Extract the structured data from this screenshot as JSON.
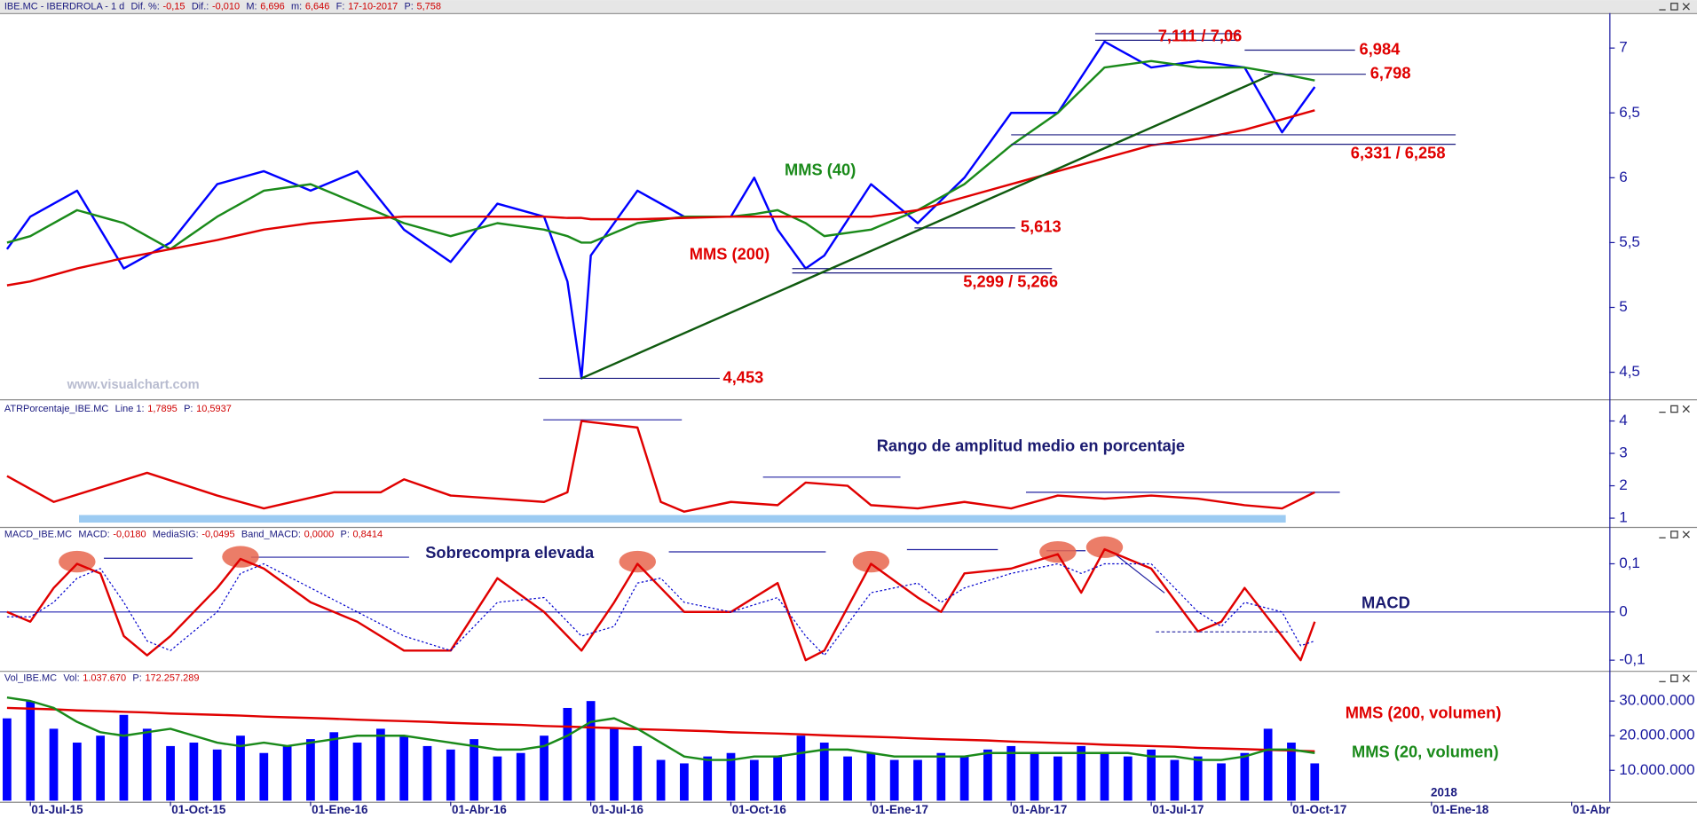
{
  "chart_data": [
    {
      "type": "line",
      "header": {
        "title": "IBE.MC - IBERDROLA -  1 d",
        "stats": [
          {
            "name": "Dif. %:",
            "value": "-0,15"
          },
          {
            "name": "Dif.:",
            "value": "-0,010"
          },
          {
            "name": "M:",
            "value": "6,696"
          },
          {
            "name": "m:",
            "value": "6,646"
          },
          {
            "name": "F:",
            "value": "17-10-2017"
          },
          {
            "name": "P:",
            "value": "5,758"
          }
        ]
      },
      "xlim": [
        -0.65,
        33.6
      ],
      "ylim": [
        4.3,
        7.27
      ],
      "yticks": [
        {
          "value": 4.5,
          "label": "4,5"
        },
        5,
        {
          "value": 5.5,
          "label": "5,5"
        },
        6,
        {
          "value": 6.5,
          "label": "6,5"
        },
        7
      ],
      "x": [
        -0.5,
        0,
        1,
        2,
        3,
        4,
        5,
        6,
        7,
        8,
        9,
        10,
        11,
        11.5,
        11.8,
        12,
        13,
        14,
        15,
        15.5,
        16,
        16.6,
        17,
        18,
        19,
        20,
        21,
        22,
        23,
        24,
        25,
        26,
        26.8,
        27.5
      ],
      "series": [
        {
          "color": "#0000ff",
          "values": [
            5.45,
            5.7,
            5.9,
            5.3,
            5.5,
            5.95,
            6.05,
            5.9,
            6.05,
            5.6,
            5.35,
            5.8,
            5.7,
            5.2,
            4.453,
            5.4,
            5.9,
            5.7,
            5.7,
            6.0,
            5.6,
            5.3,
            5.4,
            5.95,
            5.65,
            6.0,
            6.5,
            6.5,
            7.05,
            6.85,
            6.9,
            6.85,
            6.35,
            6.7
          ]
        },
        {
          "name": "MMS (40)",
          "color": "#1a8a1a",
          "values": [
            5.5,
            5.55,
            5.75,
            5.65,
            5.45,
            5.7,
            5.9,
            5.95,
            5.8,
            5.65,
            5.55,
            5.65,
            5.6,
            5.55,
            5.5,
            5.5,
            5.65,
            5.7,
            5.7,
            5.72,
            5.75,
            5.65,
            5.55,
            5.6,
            5.75,
            5.95,
            6.25,
            6.5,
            6.85,
            6.9,
            6.85,
            6.85,
            6.8,
            6.75
          ]
        },
        {
          "name": "MMS (200)",
          "color": "#e00000",
          "values": [
            5.17,
            5.2,
            5.3,
            5.38,
            5.45,
            5.52,
            5.6,
            5.65,
            5.68,
            5.7,
            5.7,
            5.7,
            5.7,
            5.69,
            5.69,
            5.68,
            5.68,
            5.69,
            5.7,
            5.7,
            5.7,
            5.7,
            5.7,
            5.7,
            5.75,
            5.85,
            5.95,
            6.05,
            6.15,
            6.25,
            6.3,
            6.37,
            6.45,
            6.52
          ]
        }
      ],
      "levels": [
        {
          "text": "4,453",
          "x": 11.8,
          "values": [
            4.453
          ]
        },
        {
          "text": "5,299 / 5,266",
          "x": 16.6,
          "values": [
            5.299,
            5.266
          ]
        },
        {
          "text": "5,613",
          "x": 19,
          "values": [
            5.613
          ]
        },
        {
          "text": "6,331 / 6,258",
          "x": 21,
          "values": [
            6.331,
            6.258
          ]
        },
        {
          "text": "6,798",
          "x": 26.6,
          "values": [
            6.798
          ]
        },
        {
          "text": "6,984",
          "x": 26,
          "values": [
            6.984
          ]
        },
        {
          "text": "7,111 / 7,06",
          "x": 22.8,
          "values": [
            7.111,
            7.06
          ]
        }
      ],
      "annotations": [
        "www.visualchart.com"
      ]
    },
    {
      "type": "line",
      "header": {
        "title": "ATRPorcentaje_IBE.MC",
        "stats": [
          {
            "name": "Line 1:",
            "value": "1,7895"
          },
          {
            "name": "P:",
            "value": "10,5937"
          }
        ]
      },
      "xlim": [
        -0.65,
        33.6
      ],
      "ylim": [
        0.73,
        4.57
      ],
      "yticks": [
        1,
        2,
        3,
        4
      ],
      "x": [
        -0.5,
        0.5,
        2.5,
        4,
        5,
        6.5,
        7.5,
        8,
        9,
        10,
        11,
        11.5,
        11.8,
        13,
        13.5,
        14,
        15,
        16,
        16.6,
        17.5,
        18,
        19,
        20,
        21,
        22,
        23,
        24,
        25,
        26,
        26.8,
        27.5
      ],
      "series": [
        {
          "color": "#e00000",
          "values": [
            2.3,
            1.5,
            2.4,
            1.7,
            1.3,
            1.8,
            1.8,
            2.2,
            1.7,
            1.6,
            1.5,
            1.8,
            4.0,
            3.8,
            1.5,
            1.2,
            1.5,
            1.4,
            2.1,
            2.0,
            1.4,
            1.3,
            1.5,
            1.3,
            1.7,
            1.6,
            1.7,
            1.6,
            1.4,
            1.3,
            1.8
          ]
        }
      ],
      "annotations": [
        "Rango de amplitud medio en porcentaje"
      ]
    },
    {
      "type": "line",
      "header": {
        "title": "MACD_IBE.MC",
        "stats": [
          {
            "name": "MACD:",
            "value": "-0,0180"
          },
          {
            "name": "MediaSIG:",
            "value": "-0,0495"
          },
          {
            "name": "Band_MACD:",
            "value": "0,0000"
          },
          {
            "name": "P:",
            "value": "0,8414"
          }
        ]
      },
      "xlim": [
        -0.65,
        33.6
      ],
      "ylim": [
        -0.122,
        0.172
      ],
      "yticks": [
        {
          "value": 0.1,
          "label": "0,1"
        },
        0,
        {
          "value": -0.1,
          "label": "-0,1"
        }
      ],
      "zero_line": true,
      "x": [
        -0.5,
        0,
        0.5,
        1,
        1.5,
        2,
        2.5,
        3,
        4,
        4.5,
        5,
        6,
        7,
        8,
        9,
        10,
        11,
        11.8,
        12.5,
        13,
        13.5,
        14,
        15,
        16,
        16.6,
        17,
        18,
        19,
        19.5,
        20,
        21,
        22,
        22.5,
        23,
        24,
        25,
        25.5,
        26,
        26.8,
        27.2,
        27.5
      ],
      "series": [
        {
          "name": "MACD",
          "color": "#e00000",
          "values": [
            0,
            -0.02,
            0.05,
            0.1,
            0.08,
            -0.05,
            -0.09,
            -0.05,
            0.05,
            0.11,
            0.09,
            0.02,
            -0.02,
            -0.08,
            -0.08,
            0.07,
            0.0,
            -0.08,
            0.02,
            0.1,
            0.05,
            0.0,
            0.0,
            0.06,
            -0.1,
            -0.08,
            0.1,
            0.03,
            0.0,
            0.08,
            0.09,
            0.12,
            0.04,
            0.13,
            0.09,
            -0.04,
            -0.02,
            0.05,
            -0.05,
            -0.1,
            -0.02
          ]
        },
        {
          "color": "#0000cc",
          "style": "dotted",
          "values": [
            -0.01,
            -0.01,
            0.02,
            0.07,
            0.09,
            0.02,
            -0.06,
            -0.08,
            0.0,
            0.08,
            0.1,
            0.05,
            0.0,
            -0.05,
            -0.08,
            0.02,
            0.03,
            -0.05,
            -0.03,
            0.06,
            0.07,
            0.02,
            0.0,
            0.03,
            -0.05,
            -0.09,
            0.04,
            0.06,
            0.02,
            0.05,
            0.08,
            0.1,
            0.08,
            0.1,
            0.1,
            0.0,
            -0.03,
            0.02,
            0.0,
            -0.07,
            -0.06
          ]
        }
      ],
      "annotations": [
        "Sobrecompra elevada"
      ]
    },
    {
      "type": "bar",
      "header": {
        "title": "Vol_IBE.MC",
        "stats": [
          {
            "name": "Vol:",
            "value": "1.037.670"
          },
          {
            "name": "P:",
            "value": "172.257.289"
          }
        ]
      },
      "xlim": [
        -0.65,
        33.6
      ],
      "ylim": [
        1250000,
        38100000
      ],
      "yticks": [
        {
          "value": 10000000,
          "label": "10.000.000"
        },
        {
          "value": 20000000,
          "label": "20.000.000"
        },
        {
          "value": 30000000,
          "label": "30.000.000"
        }
      ],
      "xticks": [
        {
          "value": 0,
          "label": "01-Jul-15"
        },
        {
          "value": 3,
          "label": "01-Oct-15"
        },
        {
          "value": 6,
          "label": "01-Ene-16"
        },
        {
          "value": 9,
          "label": "01-Abr-16"
        },
        {
          "value": 12,
          "label": "01-Jul-16"
        },
        {
          "value": 15,
          "label": "01-Oct-16"
        },
        {
          "value": 18,
          "label": "01-Ene-17"
        },
        {
          "value": 21,
          "label": "01-Abr-17"
        },
        {
          "value": 24,
          "label": "01-Jul-17"
        },
        {
          "value": 27,
          "label": "01-Oct-17"
        },
        {
          "value": 30,
          "label": "01-Ene-18"
        },
        {
          "value": 33,
          "label": "01-Abr"
        }
      ],
      "x": [
        -0.5,
        0,
        0.5,
        1,
        1.5,
        2,
        2.5,
        3,
        3.5,
        4,
        4.5,
        5,
        5.5,
        6,
        6.5,
        7,
        7.5,
        8,
        8.5,
        9,
        9.5,
        10,
        10.5,
        11,
        11.5,
        12,
        12.5,
        13,
        13.5,
        14,
        14.5,
        15,
        15.5,
        16,
        16.5,
        17,
        17.5,
        18,
        18.5,
        19,
        19.5,
        20,
        20.5,
        21,
        21.5,
        22,
        22.5,
        23,
        23.5,
        24,
        24.5,
        25,
        25.5,
        26,
        26.5,
        27,
        27.5
      ],
      "series": [
        {
          "color": "#0000ff",
          "style": "bar",
          "values": [
            25000000,
            30000000,
            22000000,
            18000000,
            20000000,
            26000000,
            22000000,
            17000000,
            18000000,
            16000000,
            20000000,
            15000000,
            17000000,
            19000000,
            21000000,
            18000000,
            22000000,
            20000000,
            17000000,
            16000000,
            19000000,
            14000000,
            15000000,
            20000000,
            28000000,
            30000000,
            22000000,
            17000000,
            13000000,
            12000000,
            14000000,
            15000000,
            13000000,
            14000000,
            20000000,
            18000000,
            14000000,
            15000000,
            13000000,
            13000000,
            15000000,
            14000000,
            16000000,
            17000000,
            15000000,
            14000000,
            17000000,
            15000000,
            14000000,
            16000000,
            13000000,
            14000000,
            12000000,
            15000000,
            22000000,
            18000000,
            12000000
          ]
        },
        {
          "name": "MMS (200, volumen)",
          "color": "#e00000",
          "style": "line",
          "values": [
            28000000,
            27800000,
            27600000,
            27300000,
            27100000,
            26900000,
            26700000,
            26400000,
            26200000,
            26000000,
            25800000,
            25500000,
            25300000,
            25100000,
            24900000,
            24600000,
            24400000,
            24200000,
            24000000,
            23700000,
            23500000,
            23300000,
            23100000,
            22800000,
            22600000,
            22400000,
            22200000,
            21900000,
            21700000,
            21500000,
            21300000,
            21000000,
            20800000,
            20600000,
            20400000,
            20100000,
            19900000,
            19700000,
            19500000,
            19200000,
            19000000,
            18800000,
            18600000,
            18300000,
            18100000,
            17900000,
            17700000,
            17400000,
            17200000,
            17000000,
            16800000,
            16500000,
            16300000,
            16100000,
            15900000,
            15700000,
            15500000
          ]
        },
        {
          "name": "MMS (20, volumen)",
          "color": "#1a8a1a",
          "style": "line",
          "values": [
            31000000,
            30000000,
            28000000,
            24000000,
            21000000,
            20000000,
            21000000,
            22000000,
            20000000,
            18000000,
            17000000,
            18000000,
            17000000,
            18000000,
            19000000,
            20000000,
            20000000,
            20000000,
            19000000,
            18000000,
            17000000,
            16000000,
            16000000,
            17000000,
            20000000,
            24000000,
            25000000,
            22000000,
            18000000,
            14000000,
            13000000,
            13000000,
            14000000,
            14000000,
            15000000,
            16000000,
            16000000,
            15000000,
            14000000,
            14000000,
            14000000,
            14000000,
            15000000,
            15000000,
            15000000,
            15000000,
            15000000,
            15000000,
            15000000,
            14000000,
            14000000,
            13000000,
            13000000,
            14000000,
            16000000,
            16000000,
            15000000
          ]
        }
      ],
      "annotations": [
        "2018"
      ]
    }
  ]
}
